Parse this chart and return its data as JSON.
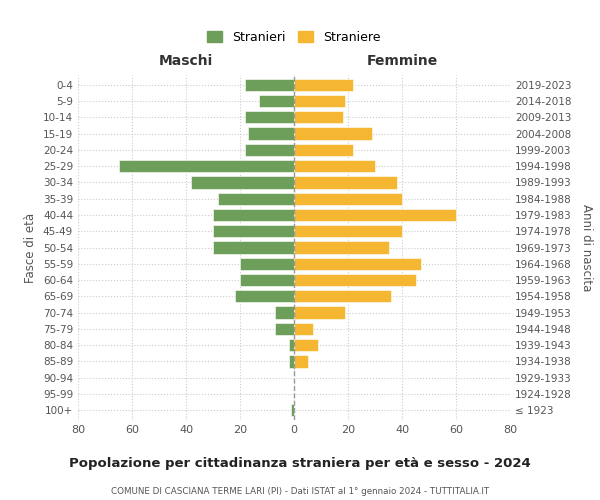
{
  "age_groups": [
    "100+",
    "95-99",
    "90-94",
    "85-89",
    "80-84",
    "75-79",
    "70-74",
    "65-69",
    "60-64",
    "55-59",
    "50-54",
    "45-49",
    "40-44",
    "35-39",
    "30-34",
    "25-29",
    "20-24",
    "15-19",
    "10-14",
    "5-9",
    "0-4"
  ],
  "birth_years": [
    "≤ 1923",
    "1924-1928",
    "1929-1933",
    "1934-1938",
    "1939-1943",
    "1944-1948",
    "1949-1953",
    "1954-1958",
    "1959-1963",
    "1964-1968",
    "1969-1973",
    "1974-1978",
    "1979-1983",
    "1984-1988",
    "1989-1993",
    "1994-1998",
    "1999-2003",
    "2004-2008",
    "2009-2013",
    "2014-2018",
    "2019-2023"
  ],
  "maschi": [
    1,
    0,
    0,
    2,
    2,
    7,
    7,
    22,
    20,
    20,
    30,
    30,
    30,
    28,
    38,
    65,
    18,
    17,
    18,
    13,
    18
  ],
  "femmine": [
    0,
    0,
    0,
    5,
    9,
    7,
    19,
    36,
    45,
    47,
    35,
    40,
    60,
    40,
    38,
    30,
    22,
    29,
    18,
    19,
    22
  ],
  "color_maschi": "#6d9e5a",
  "color_femmine": "#f5b731",
  "title": "Popolazione per cittadinanza straniera per età e sesso - 2024",
  "subtitle": "COMUNE DI CASCIANA TERME LARI (PI) - Dati ISTAT al 1° gennaio 2024 - TUTTITALIA.IT",
  "xlabel_left": "Maschi",
  "xlabel_right": "Femmine",
  "ylabel_left": "Fasce di età",
  "ylabel_right": "Anni di nascita",
  "legend_stranieri": "Stranieri",
  "legend_straniere": "Straniere",
  "xlim": 80,
  "background_color": "#ffffff",
  "grid_color": "#cccccc"
}
